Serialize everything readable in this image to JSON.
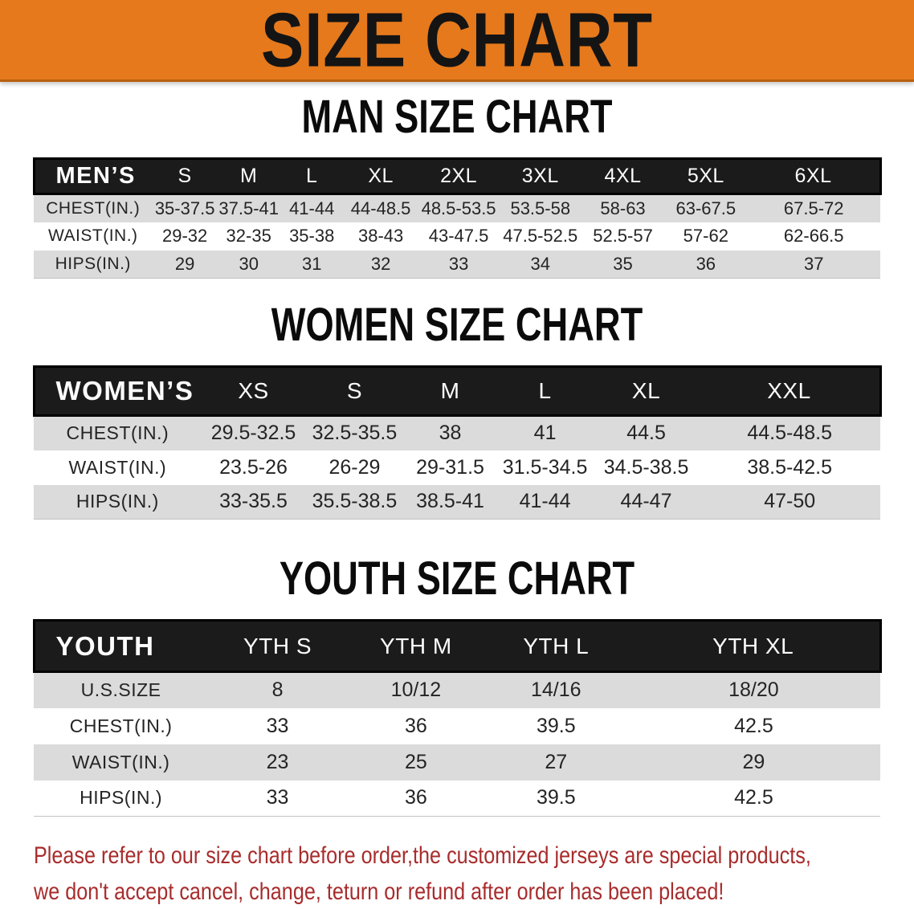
{
  "banner": {
    "title": "SIZE CHART",
    "background_color": "#E5791C",
    "title_color": "#141414"
  },
  "sections": [
    {
      "id": "men",
      "heading": "MAN SIZE CHART",
      "table": {
        "corner_label": "MEN’S",
        "columns": [
          "S",
          "M",
          "L",
          "XL",
          "2XL",
          "3XL",
          "4XL",
          "5XL",
          "6XL"
        ],
        "rows": [
          {
            "label": "CHEST(IN.)",
            "values": [
              "35-37.5",
              "37.5-41",
              "41-44",
              "44-48.5",
              "48.5-53.5",
              "53.5-58",
              "58-63",
              "63-67.5",
              "67.5-72"
            ]
          },
          {
            "label": "WAIST(IN.)",
            "values": [
              "29-32",
              "32-35",
              "35-38",
              "38-43",
              "43-47.5",
              "47.5-52.5",
              "52.5-57",
              "57-62",
              "62-66.5"
            ]
          },
          {
            "label": "HIPS(IN.)",
            "values": [
              "29",
              "30",
              "31",
              "32",
              "33",
              "34",
              "35",
              "36",
              "37"
            ]
          }
        ]
      }
    },
    {
      "id": "women",
      "heading": "WOMEN SIZE CHART",
      "table": {
        "corner_label": "WOMEN’S",
        "columns": [
          "XS",
          "S",
          "M",
          "L",
          "XL",
          "XXL"
        ],
        "rows": [
          {
            "label": "CHEST(IN.)",
            "values": [
              "29.5-32.5",
              "32.5-35.5",
              "38",
              "41",
              "44.5",
              "44.5-48.5"
            ]
          },
          {
            "label": "WAIST(IN.)",
            "values": [
              "23.5-26",
              "26-29",
              "29-31.5",
              "31.5-34.5",
              "34.5-38.5",
              "38.5-42.5"
            ]
          },
          {
            "label": "HIPS(IN.)",
            "values": [
              "33-35.5",
              "35.5-38.5",
              "38.5-41",
              "41-44",
              "44-47",
              "47-50"
            ]
          }
        ]
      }
    },
    {
      "id": "youth",
      "heading": "YOUTH SIZE CHART",
      "table": {
        "corner_label": "YOUTH",
        "columns": [
          "YTH S",
          "YTH M",
          "YTH L",
          "YTH XL"
        ],
        "rows": [
          {
            "label": "U.S.SIZE",
            "values": [
              "8",
              "10/12",
              "14/16",
              "18/20"
            ]
          },
          {
            "label": "CHEST(IN.)",
            "values": [
              "33",
              "36",
              "39.5",
              "42.5"
            ]
          },
          {
            "label": "WAIST(IN.)",
            "values": [
              "23",
              "25",
              "27",
              "29"
            ]
          },
          {
            "label": "HIPS(IN.)",
            "values": [
              "33",
              "36",
              "39.5",
              "42.5"
            ]
          }
        ]
      }
    }
  ],
  "footer": {
    "line1": "Please refer to our size chart before order,the customized jerseys are special products,",
    "line2": "we don't accept cancel, change, teturn or refund after order has been placed!",
    "text_color": "#A82C2C"
  },
  "colors": {
    "row_shade": "#DBDBDB",
    "header_bar": "#1b1b1b",
    "header_text": "#FCFCFC"
  }
}
